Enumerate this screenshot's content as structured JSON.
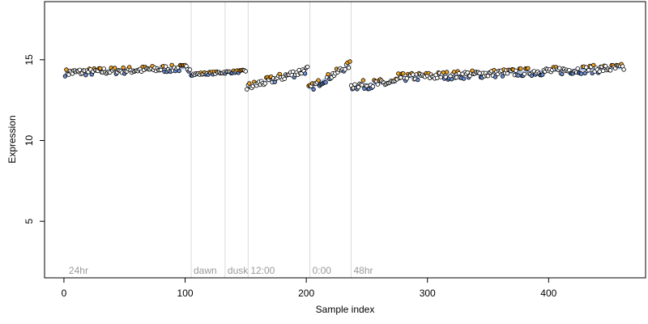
{
  "chart_data": {
    "type": "scatter",
    "title": "",
    "xlabel": "Sample index",
    "ylabel": "Expression",
    "xlim": [
      -16,
      480
    ],
    "ylim": [
      1.5,
      18.6
    ],
    "xticks": [
      0,
      100,
      200,
      300,
      400
    ],
    "yticks": [
      5,
      10,
      15
    ],
    "grid": false,
    "legend": "none",
    "colors": {
      "point_stroke": "#000000",
      "point_fill_neutral": "#ffffff",
      "point_fill_high": "#f5a623",
      "point_fill_low": "#6b8fd6",
      "smooth_line": "#a9bde6",
      "annotation_line": "#d9d9d9",
      "annotation_text": "#9a9a9a"
    },
    "annotations": [
      {
        "x": 2,
        "label": "24hr",
        "line": false
      },
      {
        "x": 105,
        "label": "dawn",
        "line": true
      },
      {
        "x": 133,
        "label": "dusk",
        "line": true
      },
      {
        "x": 152,
        "label": "12:00",
        "line": true
      },
      {
        "x": 203,
        "label": "0:00",
        "line": true
      },
      {
        "x": 237,
        "label": "48hr",
        "line": true
      }
    ],
    "series": [
      {
        "segments": [
          {
            "x_start": 1,
            "x_end": 104,
            "y_start": 14.2,
            "y_end": 14.5,
            "jitter": 0.22
          },
          {
            "x_start": 105,
            "x_end": 150,
            "y_start": 14.1,
            "y_end": 14.3,
            "jitter": 0.08
          },
          {
            "x_start": 151,
            "x_end": 201,
            "y_start": 13.3,
            "y_end": 14.4,
            "jitter": 0.25
          },
          {
            "x_start": 202,
            "x_end": 236,
            "y_start": 13.2,
            "y_end": 14.7,
            "jitter": 0.22
          },
          {
            "x_start": 237,
            "x_end": 275,
            "y_start": 13.4,
            "y_end": 13.6,
            "jitter": 0.28
          },
          {
            "x_start": 276,
            "x_end": 462,
            "y_start": 13.9,
            "y_end": 14.5,
            "jitter": 0.25
          }
        ]
      }
    ]
  }
}
